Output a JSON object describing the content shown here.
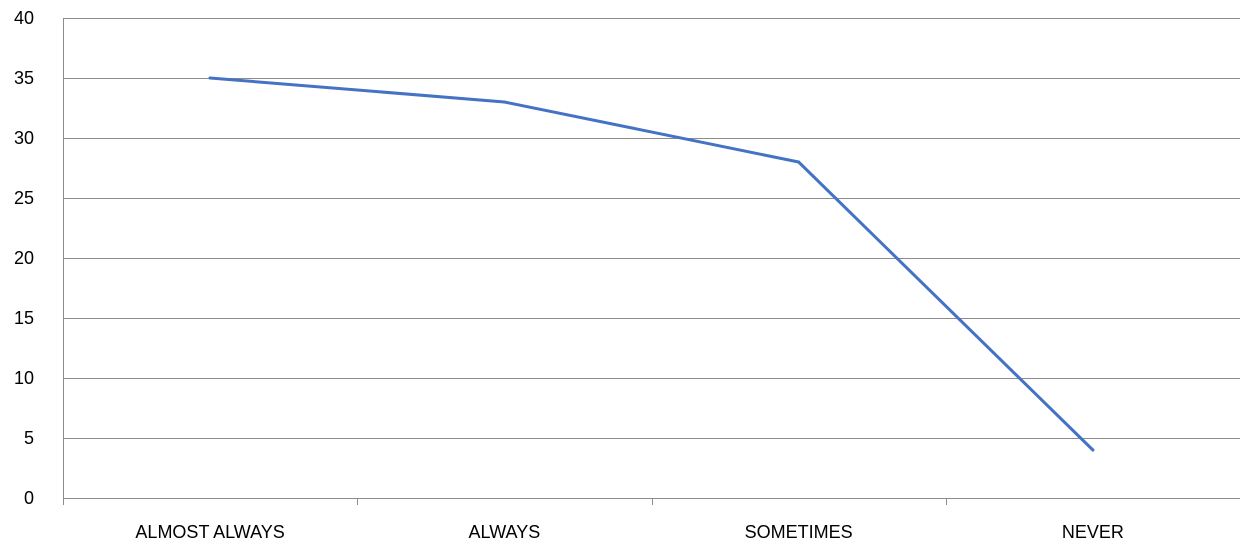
{
  "chart_data": {
    "type": "line",
    "categories": [
      "ALMOST ALWAYS",
      "ALWAYS",
      "SOMETIMES",
      "NEVER"
    ],
    "series": [
      {
        "values": [
          35,
          33,
          28,
          4
        ]
      }
    ],
    "ylim": [
      0,
      40
    ],
    "yticks": [
      0,
      5,
      10,
      15,
      20,
      25,
      30,
      35,
      40
    ],
    "grid": true,
    "legend": "none",
    "colors": {
      "line": "#4472C4",
      "grid": "#8C8C8C",
      "axis": "#8C8C8C",
      "text": "#000000"
    }
  }
}
